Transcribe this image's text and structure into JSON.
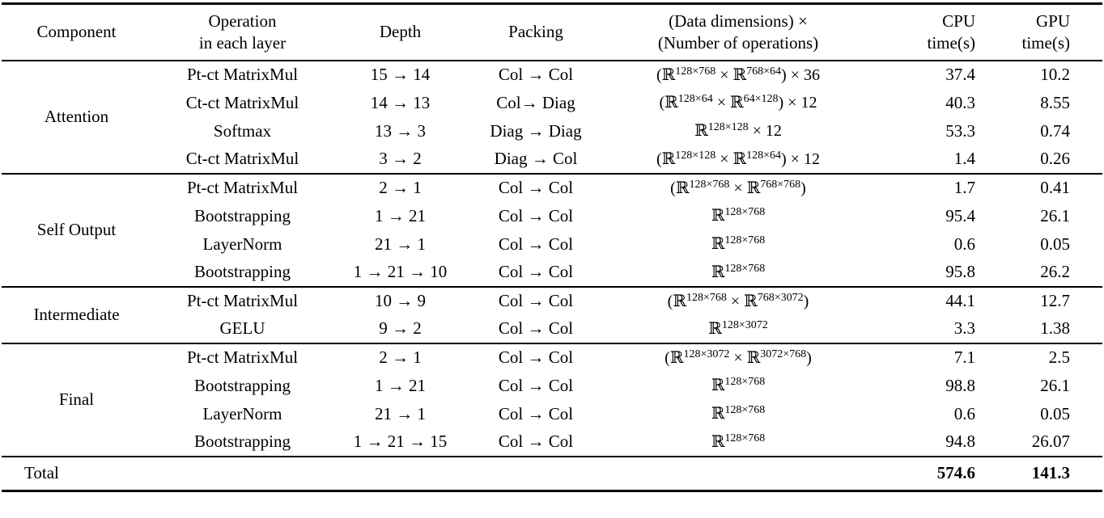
{
  "page": {
    "background_color": "#ffffff",
    "text_color": "#000000"
  },
  "table": {
    "headers": {
      "component": "Component",
      "operation_line1": "Operation",
      "operation_line2": "in each layer",
      "depth": "Depth",
      "packing": "Packing",
      "dims_line1": "(Data dimensions) ×",
      "dims_line2": "(Number of operations)",
      "cpu_line1": "CPU",
      "cpu_line2": "time(s)",
      "gpu_line1": "GPU",
      "gpu_line2": "time(s)"
    },
    "groups": [
      {
        "component": "Attention",
        "rows": [
          {
            "operation": "Pt-ct MatrixMul",
            "depth": "15 → 14",
            "packing": "Col → Col",
            "dims": "(ℝ^{128×768} × ℝ^{768×64}) × 36",
            "cpu": "37.4",
            "gpu": "10.2"
          },
          {
            "operation": "Ct-ct MatrixMul",
            "depth": "14 → 13",
            "packing": "Col→ Diag",
            "dims": "(ℝ^{128×64} × ℝ^{64×128}) × 12",
            "cpu": "40.3",
            "gpu": "8.55"
          },
          {
            "operation": "Softmax",
            "depth": "13 → 3",
            "packing": "Diag → Diag",
            "dims": "ℝ^{128×128} × 12",
            "cpu": "53.3",
            "gpu": "0.74"
          },
          {
            "operation": "Ct-ct MatrixMul",
            "depth": "3 → 2",
            "packing": "Diag → Col",
            "dims": "(ℝ^{128×128} × ℝ^{128×64}) × 12",
            "cpu": "1.4",
            "gpu": "0.26"
          }
        ]
      },
      {
        "component": "Self Output",
        "rows": [
          {
            "operation": "Pt-ct MatrixMul",
            "depth": "2 → 1",
            "packing": "Col → Col",
            "dims": "(ℝ^{128×768} × ℝ^{768×768})",
            "cpu": "1.7",
            "gpu": "0.41"
          },
          {
            "operation": "Bootstrapping",
            "depth": "1 → 21",
            "packing": "Col → Col",
            "dims": "ℝ^{128×768}",
            "cpu": "95.4",
            "gpu": "26.1"
          },
          {
            "operation": "LayerNorm",
            "depth": "21 → 1",
            "packing": "Col → Col",
            "dims": "ℝ^{128×768}",
            "cpu": "0.6",
            "gpu": "0.05"
          },
          {
            "operation": "Bootstrapping",
            "depth": "1 → 21 → 10",
            "packing": "Col → Col",
            "dims": "ℝ^{128×768}",
            "cpu": "95.8",
            "gpu": "26.2"
          }
        ]
      },
      {
        "component": "Intermediate",
        "rows": [
          {
            "operation": "Pt-ct MatrixMul",
            "depth": "10 → 9",
            "packing": "Col → Col",
            "dims": "(ℝ^{128×768} × ℝ^{768×3072})",
            "cpu": "44.1",
            "gpu": "12.7"
          },
          {
            "operation": "GELU",
            "depth": "9 → 2",
            "packing": "Col → Col",
            "dims": "ℝ^{128×3072}",
            "cpu": "3.3",
            "gpu": "1.38"
          }
        ]
      },
      {
        "component": "Final",
        "rows": [
          {
            "operation": "Pt-ct MatrixMul",
            "depth": "2 → 1",
            "packing": "Col → Col",
            "dims": "(ℝ^{128×3072} × ℝ^{3072×768})",
            "cpu": "7.1",
            "gpu": "2.5"
          },
          {
            "operation": "Bootstrapping",
            "depth": "1 → 21",
            "packing": "Col → Col",
            "dims": "ℝ^{128×768}",
            "cpu": "98.8",
            "gpu": "26.1"
          },
          {
            "operation": "LayerNorm",
            "depth": "21 → 1",
            "packing": "Col → Col",
            "dims": "ℝ^{128×768}",
            "cpu": "0.6",
            "gpu": "0.05"
          },
          {
            "operation": "Bootstrapping",
            "depth": "1 → 21 → 15",
            "packing": "Col → Col",
            "dims": "ℝ^{128×768}",
            "cpu": "94.8",
            "gpu": "26.07"
          }
        ]
      }
    ],
    "total": {
      "label": "Total",
      "cpu": "574.6",
      "gpu": "141.3"
    }
  }
}
